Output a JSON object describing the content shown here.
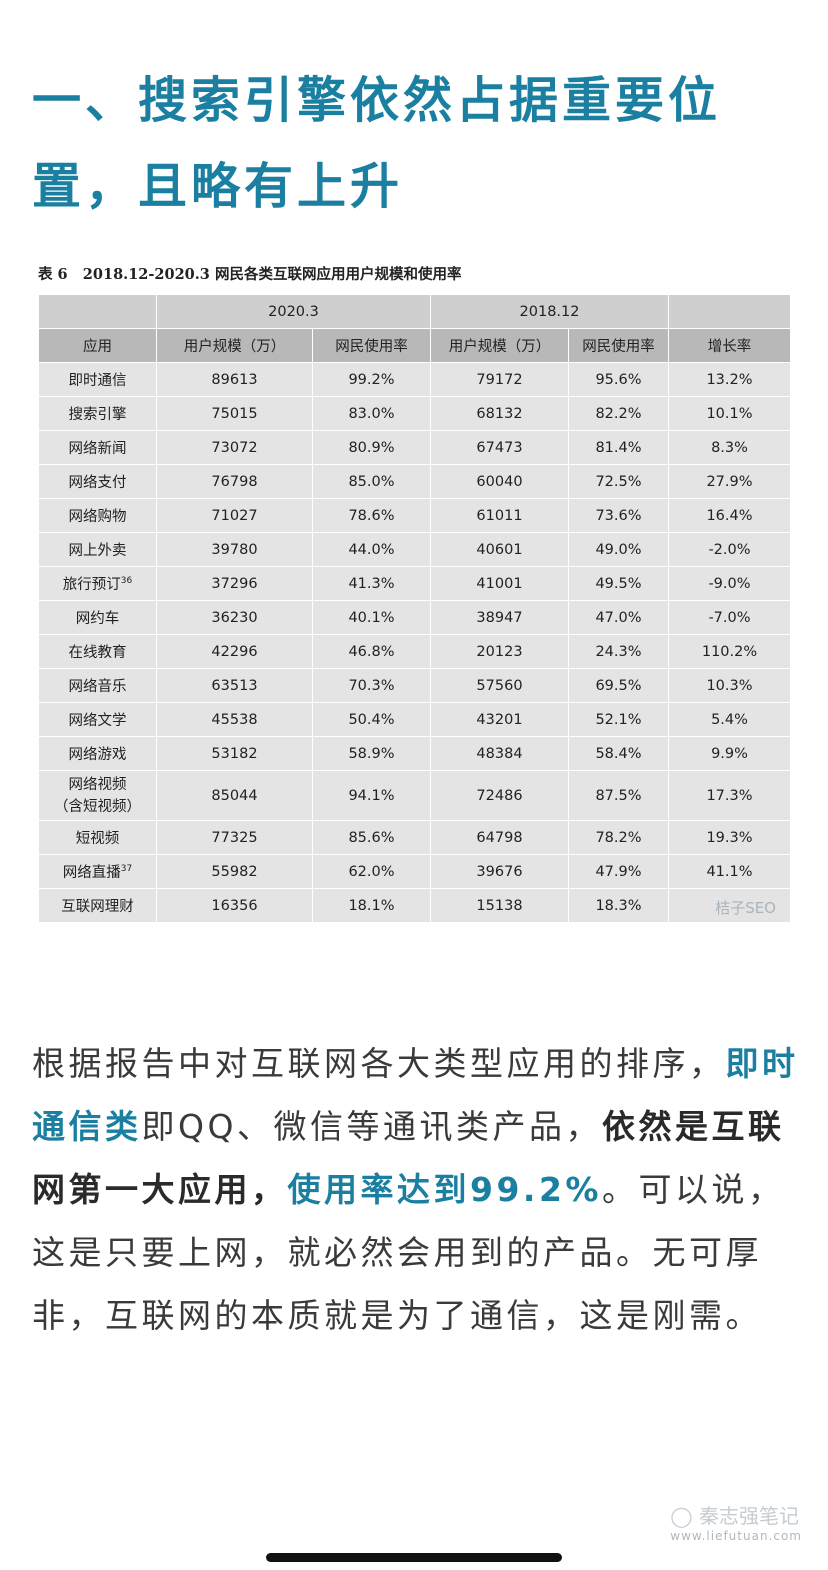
{
  "heading": "一、搜索引擎依然占据重要位置，且略有上升",
  "table": {
    "caption_no": "表 6",
    "caption_title": "2018.12-2020.3 网民各类互联网应用用户规模和使用率",
    "period_2020": "2020.3",
    "period_2018": "2018.12",
    "col_app": "应用",
    "col_users_2020": "用户规模（万）",
    "col_rate_2020": "网民使用率",
    "col_users_2018": "用户规模（万）",
    "col_rate_2018": "网民使用率",
    "col_growth": "增长率",
    "rows": [
      {
        "app": "即时通信",
        "u20": "89613",
        "r20": "99.2%",
        "u18": "79172",
        "r18": "95.6%",
        "g": "13.2%"
      },
      {
        "app": "搜索引擎",
        "u20": "75015",
        "r20": "83.0%",
        "u18": "68132",
        "r18": "82.2%",
        "g": "10.1%"
      },
      {
        "app": "网络新闻",
        "u20": "73072",
        "r20": "80.9%",
        "u18": "67473",
        "r18": "81.4%",
        "g": "8.3%"
      },
      {
        "app": "网络支付",
        "u20": "76798",
        "r20": "85.0%",
        "u18": "60040",
        "r18": "72.5%",
        "g": "27.9%"
      },
      {
        "app": "网络购物",
        "u20": "71027",
        "r20": "78.6%",
        "u18": "61011",
        "r18": "73.6%",
        "g": "16.4%"
      },
      {
        "app": "网上外卖",
        "u20": "39780",
        "r20": "44.0%",
        "u18": "40601",
        "r18": "49.0%",
        "g": "-2.0%"
      },
      {
        "app": "旅行预订",
        "sup": "36",
        "u20": "37296",
        "r20": "41.3%",
        "u18": "41001",
        "r18": "49.5%",
        "g": "-9.0%"
      },
      {
        "app": "网约车",
        "u20": "36230",
        "r20": "40.1%",
        "u18": "38947",
        "r18": "47.0%",
        "g": "-7.0%"
      },
      {
        "app": "在线教育",
        "u20": "42296",
        "r20": "46.8%",
        "u18": "20123",
        "r18": "24.3%",
        "g": "110.2%"
      },
      {
        "app": "网络音乐",
        "u20": "63513",
        "r20": "70.3%",
        "u18": "57560",
        "r18": "69.5%",
        "g": "10.3%"
      },
      {
        "app": "网络文学",
        "u20": "45538",
        "r20": "50.4%",
        "u18": "43201",
        "r18": "52.1%",
        "g": "5.4%"
      },
      {
        "app": "网络游戏",
        "u20": "53182",
        "r20": "58.9%",
        "u18": "48384",
        "r18": "58.4%",
        "g": "9.9%"
      },
      {
        "app": "网络视频",
        "app2": "（含短视频）",
        "u20": "85044",
        "r20": "94.1%",
        "u18": "72486",
        "r18": "87.5%",
        "g": "17.3%"
      },
      {
        "app": "短视频",
        "u20": "77325",
        "r20": "85.6%",
        "u18": "64798",
        "r18": "78.2%",
        "g": "19.3%"
      },
      {
        "app": "网络直播",
        "sup": "37",
        "u20": "55982",
        "r20": "62.0%",
        "u18": "39676",
        "r18": "47.9%",
        "g": "41.1%"
      },
      {
        "app": "互联网理财",
        "u20": "16356",
        "r20": "18.1%",
        "u18": "15138",
        "r18": "18.3%",
        "g": ""
      }
    ],
    "watermark": "桔子SEO"
  },
  "paragraph": {
    "p1": "根据报告中对互联网各大类型应用的排序，",
    "p2": "即时通信类",
    "p3": "即QQ、微信等通讯类产品，",
    "p4": "依然是互联网第一大应用，",
    "p5": "使用率达到99.2%",
    "p6": "。可以说，这是只要上网，就必然会用到的产品。无可厚非，互联网的本质就是为了通信，这是刚需。"
  },
  "footer_watermark": "秦志强笔记",
  "footer_watermark_sub": "www.liefutuan.com"
}
